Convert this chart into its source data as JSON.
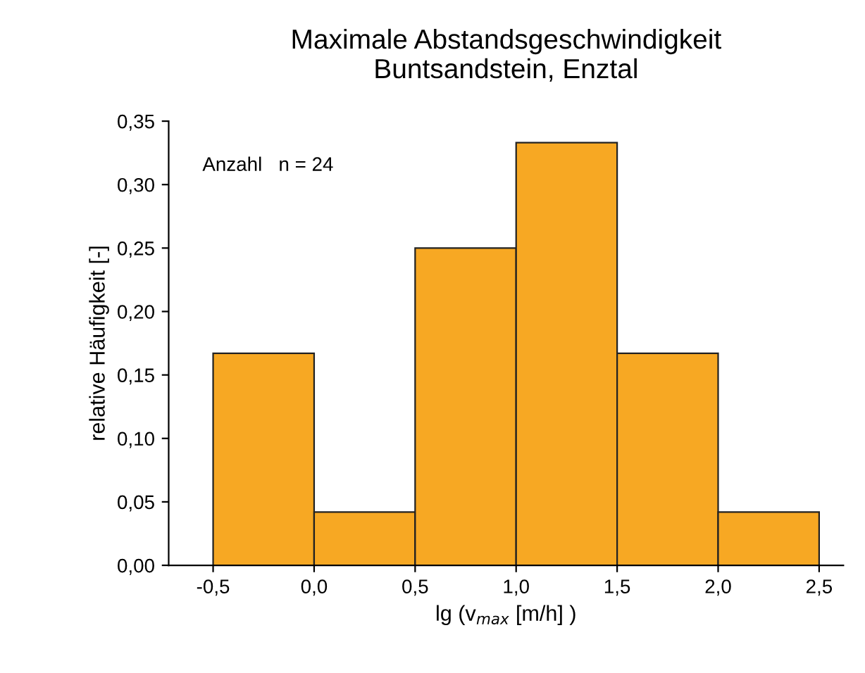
{
  "chart_data": {
    "type": "histogram",
    "title": "Maximale Abstandsgeschwindigkeit\nBuntsandstein, Enztal",
    "xlabel": "lg (v$_{max}$ [m/h] )",
    "ylabel": "relative Häufigkeit [-]",
    "bins": [
      -0.5,
      0.0,
      0.5,
      1.0,
      1.5,
      2.0,
      2.5
    ],
    "values": [
      0.167,
      0.042,
      0.25,
      0.333,
      0.167,
      0.042
    ],
    "color": "#f7a823",
    "annotations": [
      "Anzahl   n = 24"
    ],
    "xlim": [
      -0.72,
      2.62
    ],
    "ylim": [
      0,
      0.35
    ],
    "xticks": [
      {
        "value": -0.5,
        "label": "-0,5"
      },
      {
        "value": 0.0,
        "label": "0,0"
      },
      {
        "value": 0.5,
        "label": "0,5"
      },
      {
        "value": 1.0,
        "label": "1,0"
      },
      {
        "value": 1.5,
        "label": "1,5"
      },
      {
        "value": 2.0,
        "label": "2,0"
      },
      {
        "value": 2.5,
        "label": "2,5"
      }
    ],
    "yticks": [
      {
        "value": 0,
        "label": "0,00"
      },
      {
        "value": 0.05,
        "label": "0,05"
      },
      {
        "value": 0.1,
        "label": "0,10"
      },
      {
        "value": 0.15,
        "label": "0,15"
      },
      {
        "value": 0.2,
        "label": "0,20"
      },
      {
        "value": 0.25,
        "label": "0,25"
      },
      {
        "value": 0.3,
        "label": "0,30"
      },
      {
        "value": 0.35,
        "label": "0,35"
      }
    ],
    "grid": false
  }
}
